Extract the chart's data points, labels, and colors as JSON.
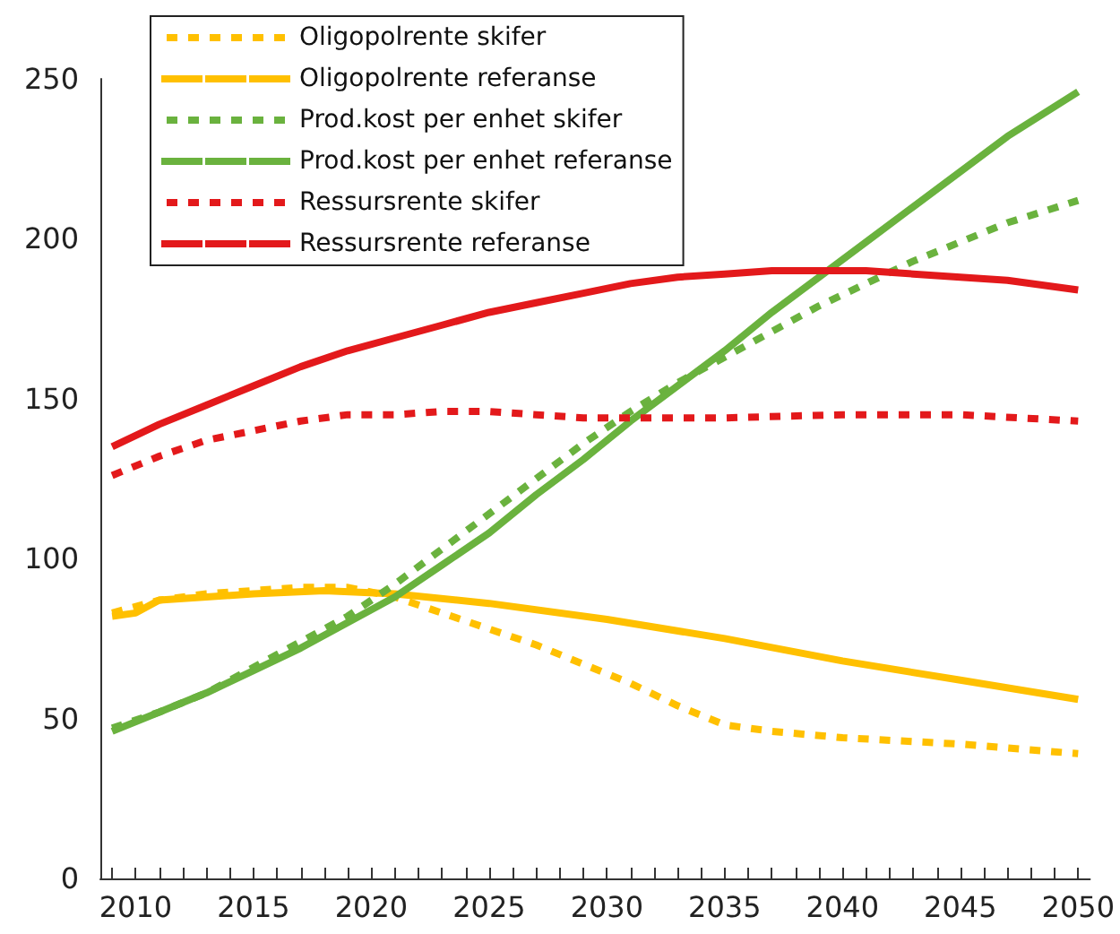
{
  "chart_data": {
    "type": "line",
    "xlim": [
      2008.5,
      2050.5
    ],
    "xticks": [
      {
        "value": 2009,
        "label": null
      },
      2010,
      {
        "value": 2011,
        "label": null
      },
      {
        "value": 2012,
        "label": null
      },
      {
        "value": 2013,
        "label": null
      },
      {
        "value": 2014,
        "label": null
      },
      2015,
      {
        "value": 2016,
        "label": null
      },
      {
        "value": 2017,
        "label": null
      },
      {
        "value": 2018,
        "label": null
      },
      {
        "value": 2019,
        "label": null
      },
      2020,
      {
        "value": 2021,
        "label": null
      },
      {
        "value": 2022,
        "label": null
      },
      {
        "value": 2023,
        "label": null
      },
      {
        "value": 2024,
        "label": null
      },
      2025,
      {
        "value": 2026,
        "label": null
      },
      {
        "value": 2027,
        "label": null
      },
      {
        "value": 2028,
        "label": null
      },
      {
        "value": 2029,
        "label": null
      },
      2030,
      {
        "value": 2031,
        "label": null
      },
      {
        "value": 2032,
        "label": null
      },
      {
        "value": 2033,
        "label": null
      },
      {
        "value": 2034,
        "label": null
      },
      2035,
      {
        "value": 2036,
        "label": null
      },
      {
        "value": 2037,
        "label": null
      },
      {
        "value": 2038,
        "label": null
      },
      {
        "value": 2039,
        "label": null
      },
      2040,
      {
        "value": 2041,
        "label": null
      },
      {
        "value": 2042,
        "label": null
      },
      {
        "value": 2043,
        "label": null
      },
      {
        "value": 2044,
        "label": null
      },
      2045,
      {
        "value": 2046,
        "label": null
      },
      {
        "value": 2047,
        "label": null
      },
      {
        "value": 2048,
        "label": null
      },
      {
        "value": 2049,
        "label": null
      },
      2050
    ],
    "ylim": [
      0,
      250
    ],
    "yticks": [
      0,
      50,
      100,
      150,
      200,
      250
    ],
    "grid": false,
    "legend": "top left",
    "marker": "none",
    "series": [
      {
        "name": "Oligopolrente skifer",
        "color": "#ffc000",
        "line_style": "dotted",
        "x": [
          2009,
          2011,
          2013,
          2015,
          2017,
          2019,
          2021,
          2023,
          2025,
          2027,
          2029,
          2031,
          2033,
          2035,
          2037,
          2040,
          2045,
          2050
        ],
        "values": [
          83,
          87,
          89,
          90,
          91,
          91,
          88,
          83,
          78,
          73,
          67,
          61,
          54,
          48,
          46,
          44,
          42,
          39
        ]
      },
      {
        "name": "Oligopolrente referanse",
        "color": "#ffc000",
        "line_style": "solid",
        "x": [
          2009,
          2010,
          2011,
          2013,
          2015,
          2018,
          2021,
          2025,
          2030,
          2035,
          2040,
          2045,
          2050
        ],
        "values": [
          82,
          83,
          87,
          88,
          89,
          90,
          89,
          86,
          81,
          75,
          68,
          62,
          56
        ]
      },
      {
        "name": "Prod.kost per enhet skifer",
        "color": "#6ab23e",
        "line_style": "dotted",
        "x": [
          2009,
          2011,
          2013,
          2015,
          2017,
          2019,
          2021,
          2023,
          2025,
          2027,
          2029,
          2031,
          2033,
          2035,
          2037,
          2039,
          2041,
          2043,
          2045,
          2047,
          2050
        ],
        "values": [
          47,
          52,
          58,
          66,
          74,
          82,
          92,
          103,
          114,
          125,
          136,
          146,
          155,
          163,
          171,
          179,
          186,
          193,
          199,
          205,
          212
        ]
      },
      {
        "name": "Prod.kost per enhet referanse",
        "color": "#6ab23e",
        "line_style": "solid",
        "x": [
          2009,
          2011,
          2013,
          2015,
          2017,
          2019,
          2021,
          2023,
          2025,
          2027,
          2029,
          2031,
          2033,
          2035,
          2037,
          2039,
          2041,
          2043,
          2045,
          2047,
          2050
        ],
        "values": [
          46,
          52,
          58,
          65,
          72,
          80,
          88,
          98,
          108,
          120,
          131,
          143,
          154,
          165,
          177,
          188,
          199,
          210,
          221,
          232,
          246
        ]
      },
      {
        "name": "Ressursrente skifer",
        "color": "#e3191b",
        "line_style": "dotted",
        "x": [
          2009,
          2011,
          2013,
          2015,
          2017,
          2019,
          2021,
          2023,
          2025,
          2027,
          2029,
          2031,
          2035,
          2040,
          2045,
          2050
        ],
        "values": [
          126,
          132,
          137,
          140,
          143,
          145,
          145,
          146,
          146,
          145,
          144,
          144,
          144,
          145,
          145,
          143
        ]
      },
      {
        "name": "Ressursrente referanse",
        "color": "#e3191b",
        "line_style": "solid",
        "x": [
          2009,
          2011,
          2013,
          2015,
          2017,
          2019,
          2021,
          2023,
          2025,
          2027,
          2029,
          2031,
          2033,
          2035,
          2037,
          2039,
          2041,
          2043,
          2045,
          2047,
          2050
        ],
        "values": [
          135,
          142,
          148,
          154,
          160,
          165,
          169,
          173,
          177,
          180,
          183,
          186,
          188,
          189,
          190,
          190,
          190,
          189,
          188,
          187,
          184
        ]
      }
    ]
  }
}
